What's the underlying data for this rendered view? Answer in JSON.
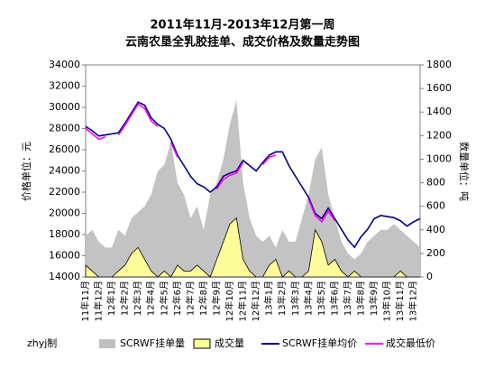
{
  "chart_data": {
    "type": "combo",
    "title": "2011年11月-2013年12月第一周",
    "subtitle": "云南农垦全乳胶挂单、成交价格及数量走势图",
    "y_label": "价格单位：元",
    "y2_label": "数量单位：吨",
    "note": "zhyj制",
    "categories": [
      "11年11月",
      null,
      "11年12月",
      null,
      "12年1月",
      null,
      "12年2月",
      null,
      "12年3月",
      null,
      "12年4月",
      null,
      "12年5月",
      null,
      "12年6月",
      null,
      "12年7月",
      null,
      "12年8月",
      null,
      "12年9月",
      null,
      "12年10月",
      null,
      "12年11月",
      null,
      "12年12月",
      null,
      "13年1月",
      null,
      "13年2月",
      null,
      "13年3月",
      null,
      "13年4月",
      null,
      "13年5月",
      null,
      "13年6月",
      null,
      "13年7月",
      null,
      "13年8月",
      null,
      "13年9月",
      null,
      "13年10月",
      null,
      "13年11月",
      null,
      "13年12月",
      null
    ],
    "ylim": [
      14000,
      34000
    ],
    "yticks": [
      14000,
      16000,
      18000,
      20000,
      22000,
      24000,
      26000,
      28000,
      30000,
      32000,
      34000
    ],
    "y2lim": [
      0,
      1800
    ],
    "y2ticks": [
      0,
      200,
      400,
      600,
      800,
      1000,
      1200,
      1400,
      1600,
      1800
    ],
    "series": [
      {
        "name": "SCRWF挂单量",
        "type": "area",
        "axis": "y2",
        "color": "#c0c0c0",
        "values": [
          350,
          400,
          300,
          250,
          250,
          400,
          350,
          500,
          550,
          600,
          700,
          900,
          950,
          1150,
          800,
          700,
          500,
          600,
          400,
          700,
          800,
          1000,
          1300,
          1500,
          800,
          500,
          350,
          300,
          350,
          250,
          400,
          300,
          300,
          500,
          700,
          1000,
          1100,
          700,
          500,
          300,
          200,
          150,
          200,
          300,
          350,
          400,
          400,
          450,
          400,
          350,
          300,
          250
        ]
      },
      {
        "name": "成交量",
        "type": "area",
        "axis": "y2",
        "color": "#ffff99",
        "values": [
          100,
          50,
          0,
          0,
          0,
          50,
          100,
          200,
          250,
          150,
          50,
          0,
          50,
          0,
          100,
          50,
          50,
          100,
          50,
          0,
          150,
          300,
          450,
          500,
          150,
          50,
          0,
          0,
          100,
          150,
          0,
          50,
          0,
          0,
          50,
          400,
          300,
          100,
          150,
          50,
          0,
          50,
          0,
          0,
          0,
          0,
          0,
          0,
          50,
          0,
          0,
          0
        ]
      },
      {
        "name": "SCRWF挂单均价",
        "type": "line",
        "axis": "y",
        "color": "#000080",
        "values": [
          28200,
          27800,
          27300,
          27400,
          27500,
          27600,
          28500,
          29500,
          30500,
          30200,
          29000,
          28400,
          28000,
          27000,
          25500,
          24500,
          23500,
          22800,
          22500,
          22000,
          22500,
          23500,
          23800,
          24000,
          25000,
          24500,
          24000,
          24800,
          25500,
          25800,
          25800,
          24500,
          23500,
          22500,
          21500,
          20000,
          19500,
          20500,
          19500,
          18500,
          17500,
          16800,
          17800,
          18500,
          19500,
          19800,
          19700,
          19600,
          19300,
          18800,
          19200,
          19500
        ]
      },
      {
        "name": "成交最低价",
        "type": "line",
        "axis": "y",
        "color": "#ff00ff",
        "values": [
          28000,
          27500,
          27000,
          27200,
          null,
          27400,
          28300,
          29300,
          30300,
          29900,
          28700,
          28200,
          null,
          26700,
          25300,
          null,
          23200,
          null,
          22300,
          null,
          22300,
          23200,
          23600,
          23800,
          24800,
          null,
          null,
          24600,
          25300,
          25500,
          null,
          null,
          null,
          null,
          21300,
          19800,
          19200,
          20200,
          19300,
          null,
          null,
          null,
          null,
          null,
          null,
          null,
          null,
          null,
          null,
          null,
          null,
          null
        ]
      }
    ]
  }
}
